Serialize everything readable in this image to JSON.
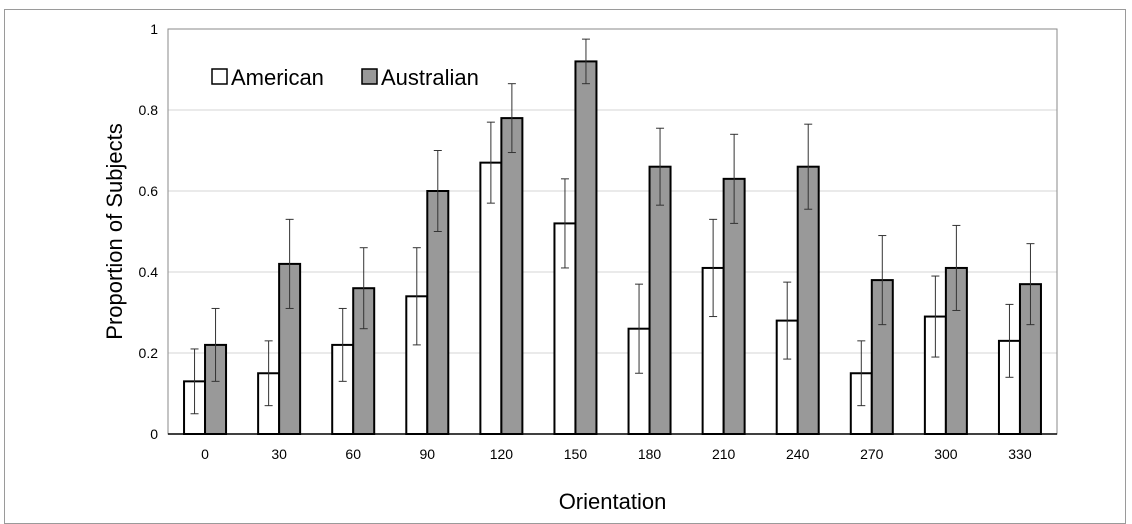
{
  "chart_data": {
    "type": "bar",
    "title": "",
    "xlabel": "Orientation",
    "ylabel": "Proportion of Subjects",
    "ylim": [
      0,
      1
    ],
    "yticks": [
      "0",
      "0.2",
      "0.4",
      "0.6",
      "0.8",
      "1"
    ],
    "grid": true,
    "legend_position": "top-left",
    "categories": [
      "0",
      "30",
      "60",
      "90",
      "120",
      "150",
      "180",
      "210",
      "240",
      "270",
      "300",
      "330"
    ],
    "series": [
      {
        "name": "American",
        "color": "#ffffff",
        "values": [
          0.13,
          0.15,
          0.22,
          0.34,
          0.67,
          0.52,
          0.26,
          0.41,
          0.28,
          0.15,
          0.29,
          0.23
        ],
        "error": [
          0.08,
          0.08,
          0.09,
          0.12,
          0.1,
          0.11,
          0.11,
          0.12,
          0.095,
          0.08,
          0.1,
          0.09
        ]
      },
      {
        "name": "Australian",
        "color": "#999999",
        "values": [
          0.22,
          0.42,
          0.36,
          0.6,
          0.78,
          0.92,
          0.66,
          0.63,
          0.66,
          0.38,
          0.41,
          0.37
        ],
        "error": [
          0.09,
          0.11,
          0.1,
          0.1,
          0.085,
          0.055,
          0.095,
          0.11,
          0.105,
          0.11,
          0.105,
          0.1
        ]
      }
    ]
  }
}
